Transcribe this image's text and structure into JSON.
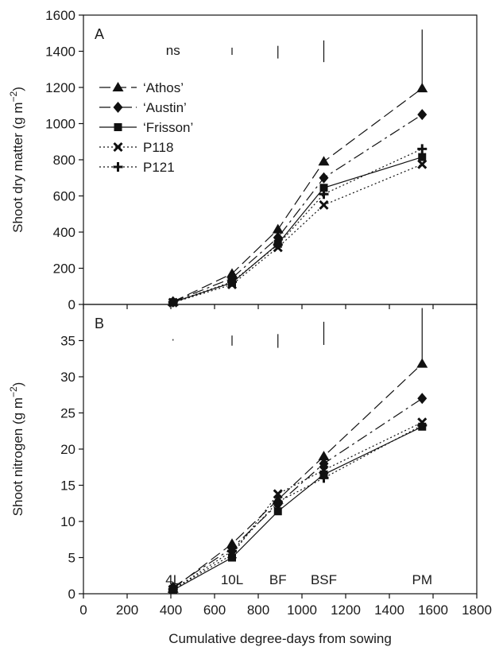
{
  "chart_data": [
    {
      "type": "line",
      "panel": "A",
      "title": "",
      "xlabel": "",
      "ylabel": "Shoot dry matter (g m−2)",
      "xlim": [
        0,
        1800
      ],
      "ylim": [
        0,
        1600
      ],
      "yticks": [
        0,
        200,
        400,
        600,
        800,
        1000,
        1200,
        1400,
        1600
      ],
      "legend_placement": "upper-left",
      "series": [
        {
          "name": "‘Athos’",
          "marker": "triangle",
          "line_style": "dashed",
          "x": [
            410,
            680,
            890,
            1100,
            1550
          ],
          "y": [
            15,
            170,
            415,
            790,
            1195
          ]
        },
        {
          "name": "‘Austin’",
          "marker": "diamond",
          "line_style": "dash-dot",
          "x": [
            410,
            680,
            890,
            1100,
            1550
          ],
          "y": [
            15,
            145,
            370,
            700,
            1050
          ]
        },
        {
          "name": "‘Frisson’",
          "marker": "square",
          "line_style": "solid",
          "x": [
            410,
            680,
            890,
            1100,
            1550
          ],
          "y": [
            12,
            120,
            335,
            645,
            815
          ]
        },
        {
          "name": "P118",
          "marker": "x",
          "line_style": "dotted",
          "x": [
            410,
            680,
            890,
            1100,
            1550
          ],
          "y": [
            10,
            110,
            315,
            550,
            775
          ]
        },
        {
          "name": "P121",
          "marker": "plus",
          "line_style": "dotted",
          "x": [
            410,
            680,
            890,
            1100,
            1550
          ],
          "y": [
            12,
            125,
            330,
            610,
            860
          ]
        }
      ],
      "annotations": [
        {
          "type": "text",
          "text": "ns",
          "x": 410
        }
      ],
      "error_bars": [
        {
          "x": 680,
          "y_low": 1380,
          "y_high": 1420
        },
        {
          "x": 890,
          "y_low": 1360,
          "y_high": 1430
        },
        {
          "x": 1100,
          "y_low": 1340,
          "y_high": 1460
        },
        {
          "x": 1550,
          "y_low": 1210,
          "y_high": 1520
        }
      ]
    },
    {
      "type": "line",
      "panel": "B",
      "title": "",
      "xlabel": "Cumulative degree-days from sowing",
      "ylabel": "Shoot nitrogen (g m−2)",
      "xlim": [
        0,
        1800
      ],
      "ylim": [
        0,
        40
      ],
      "xticks": [
        0,
        200,
        400,
        600,
        800,
        1000,
        1200,
        1400,
        1600,
        1800
      ],
      "yticks": [
        0,
        5,
        10,
        15,
        20,
        25,
        30,
        35
      ],
      "series": [
        {
          "name": "‘Athos’",
          "marker": "triangle",
          "line_style": "dashed",
          "x": [
            410,
            680,
            890,
            1100,
            1550
          ],
          "y": [
            0.7,
            6.9,
            13.0,
            19.0,
            31.8
          ]
        },
        {
          "name": "‘Austin’",
          "marker": "diamond",
          "line_style": "dash-dot",
          "x": [
            410,
            680,
            890,
            1100,
            1550
          ],
          "y": [
            0.9,
            6.3,
            12.4,
            18.0,
            27.0
          ]
        },
        {
          "name": "‘Frisson’",
          "marker": "square",
          "line_style": "solid",
          "x": [
            410,
            680,
            890,
            1100,
            1550
          ],
          "y": [
            0.5,
            5.0,
            11.4,
            16.5,
            23.1
          ]
        },
        {
          "name": "P118",
          "marker": "x",
          "line_style": "dotted",
          "x": [
            410,
            680,
            890,
            1100,
            1550
          ],
          "y": [
            0.6,
            5.4,
            13.8,
            17.1,
            23.7
          ]
        },
        {
          "name": "P121",
          "marker": "plus",
          "line_style": "dotted",
          "x": [
            410,
            680,
            890,
            1100,
            1550
          ],
          "y": [
            0.6,
            5.9,
            12.7,
            16.0,
            23.3
          ]
        }
      ],
      "annotations": [
        {
          "type": "text",
          "text": "4L",
          "x": 410
        },
        {
          "type": "text",
          "text": "10L",
          "x": 680
        },
        {
          "type": "text",
          "text": "BF",
          "x": 890
        },
        {
          "type": "text",
          "text": "BSF",
          "x": 1100
        },
        {
          "type": "text",
          "text": "PM",
          "x": 1550
        }
      ],
      "error_bars": [
        {
          "x": 410,
          "y_low": 35.0,
          "y_high": 35.2
        },
        {
          "x": 680,
          "y_low": 34.3,
          "y_high": 35.7
        },
        {
          "x": 890,
          "y_low": 34.0,
          "y_high": 35.9
        },
        {
          "x": 1100,
          "y_low": 34.4,
          "y_high": 37.6
        },
        {
          "x": 1550,
          "y_low": 32.0,
          "y_high": 39.5
        }
      ]
    }
  ]
}
